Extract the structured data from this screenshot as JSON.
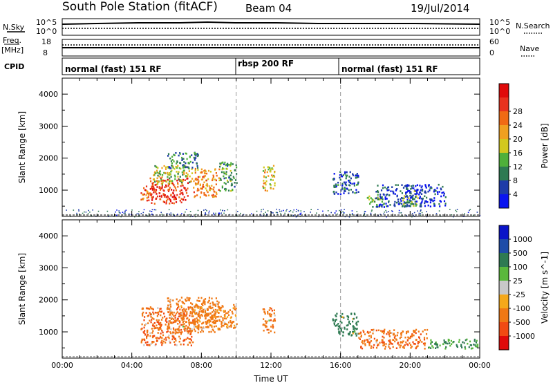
{
  "header": {
    "station": "South Pole Station (fitACF)",
    "beam": "Beam 04",
    "date": "19/Jul/2014"
  },
  "strips": {
    "nsky": {
      "left_label": "N.Sky",
      "left_ticks": [
        "10^5",
        "10^0"
      ],
      "right_ticks": [
        "10^5",
        "10^0"
      ],
      "right_label": "N.Search"
    },
    "freq": {
      "left_label_top": "Freq.",
      "left_label_bottom": "[MHz]",
      "left_ticks": [
        "18",
        "8"
      ],
      "right_ticks": [
        "60",
        "0"
      ],
      "right_label": "Nave"
    },
    "cpid": {
      "label": "CPID",
      "segments": [
        "normal (fast) 151 RF",
        "rbsp 200 RF",
        "normal (fast) 151 RF"
      ]
    }
  },
  "colors": {
    "power": [
      "#0a14f0",
      "#1e3ca8",
      "#2e7a52",
      "#4fb03a",
      "#d2c81e",
      "#f0a020",
      "#f06a14",
      "#e8321e",
      "#e00a0a"
    ],
    "velocity": [
      "#e00a0a",
      "#f24a12",
      "#f07814",
      "#f5a81a",
      "#c8c8c8",
      "#5ab83c",
      "#2e7a52",
      "#1e4ca8",
      "#0a14c8"
    ]
  },
  "chart_data": [
    {
      "type": "heatmap",
      "panel": "power",
      "x": [
        "00:00",
        "04:00",
        "08:00",
        "12:00",
        "16:00",
        "20:00",
        "00:00"
      ],
      "xlim": [
        0,
        24
      ],
      "ylabel": "Slant Range [km]",
      "yticks": [
        "1000",
        "2000",
        "3000",
        "4000"
      ],
      "ylim": [
        180,
        4500
      ],
      "colorbar": {
        "label": "Power [dB]",
        "ticks": [
          "4",
          "8",
          "12",
          "16",
          "20",
          "24",
          "28"
        ],
        "range": [
          0,
          30
        ]
      },
      "grid": false,
      "echo_regions": [
        {
          "t": [
            4.5,
            5.2
          ],
          "r": [
            700,
            1200
          ],
          "value": 22
        },
        {
          "t": [
            5.0,
            7.2
          ],
          "r": [
            600,
            1400
          ],
          "value": 26
        },
        {
          "t": [
            5.2,
            7.5
          ],
          "r": [
            1200,
            1800
          ],
          "value": 14
        },
        {
          "t": [
            6.0,
            7.8
          ],
          "r": [
            1700,
            2200
          ],
          "value": 8
        },
        {
          "t": [
            7.5,
            9.0
          ],
          "r": [
            800,
            1700
          ],
          "value": 20
        },
        {
          "t": [
            9.0,
            10.0
          ],
          "r": [
            1000,
            1900
          ],
          "value": 10
        },
        {
          "t": [
            11.5,
            12.2
          ],
          "r": [
            1000,
            1800
          ],
          "value": 16
        },
        {
          "t": [
            15.5,
            17.0
          ],
          "r": [
            900,
            1600
          ],
          "value": 6
        },
        {
          "t": [
            17.5,
            18.5
          ],
          "r": [
            500,
            900
          ],
          "value": 12
        },
        {
          "t": [
            18.0,
            22.0
          ],
          "r": [
            500,
            1200
          ],
          "value": 4
        },
        {
          "t": [
            19.5,
            20.5
          ],
          "r": [
            500,
            1000
          ],
          "value": 10
        },
        {
          "t": [
            0,
            24
          ],
          "r": [
            180,
            420
          ],
          "value": 4
        }
      ]
    },
    {
      "type": "heatmap",
      "panel": "velocity",
      "x": [
        "00:00",
        "04:00",
        "08:00",
        "12:00",
        "16:00",
        "20:00",
        "00:00"
      ],
      "xlim": [
        0,
        24
      ],
      "xlabel": "Time UT",
      "ylabel": "Slant Range [km]",
      "yticks": [
        "1000",
        "2000",
        "3000",
        "4000"
      ],
      "ylim": [
        180,
        4500
      ],
      "colorbar": {
        "label": "Velocity [m s^-1]",
        "ticks": [
          "1000",
          "500",
          "100",
          "25",
          "-25",
          "-100",
          "-500",
          "-1000"
        ]
      },
      "grid": false,
      "echo_regions": [
        {
          "t": [
            4.5,
            7.5
          ],
          "r": [
            600,
            1800
          ],
          "value": -500
        },
        {
          "t": [
            6.0,
            9.0
          ],
          "r": [
            1000,
            2100
          ],
          "value": -300
        },
        {
          "t": [
            7.5,
            10.0
          ],
          "r": [
            1100,
            1900
          ],
          "value": -150
        },
        {
          "t": [
            11.5,
            12.2
          ],
          "r": [
            1000,
            1800
          ],
          "value": -400
        },
        {
          "t": [
            15.5,
            17.0
          ],
          "r": [
            900,
            1600
          ],
          "value": 300
        },
        {
          "t": [
            17.0,
            21.0
          ],
          "r": [
            500,
            1100
          ],
          "value": -400
        },
        {
          "t": [
            21.0,
            24.0
          ],
          "r": [
            500,
            800
          ],
          "value": 100
        }
      ]
    }
  ]
}
